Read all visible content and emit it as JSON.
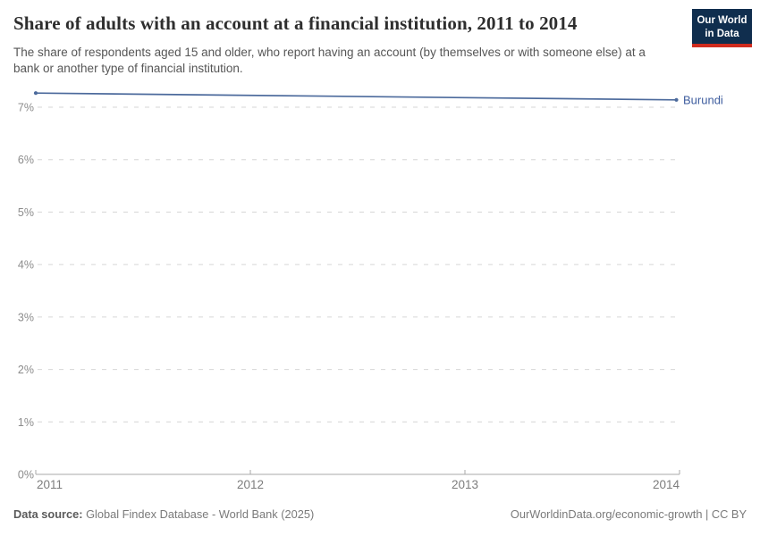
{
  "header": {
    "title": "Share of adults with an account at a financial institution, 2011 to 2014",
    "subtitle": "The share of respondents aged 15 and older, who report having an account (by themselves or with someone else) at a bank or another type of financial institution.",
    "logo_line1": "Our World",
    "logo_line2": "in Data"
  },
  "chart_data": {
    "type": "line",
    "title": "Share of adults with an account at a financial institution, 2011 to 2014",
    "xlabel": "",
    "ylabel": "",
    "x_range": [
      2011,
      2014
    ],
    "y_range": [
      0,
      7.4
    ],
    "x_ticks": [
      2011,
      2012,
      2013,
      2014
    ],
    "y_ticks": [
      0,
      1,
      2,
      3,
      4,
      5,
      6,
      7
    ],
    "y_tick_format": "percent",
    "grid": "horizontal-dashed",
    "legend_position": "end-of-line-label",
    "series": [
      {
        "name": "Burundi",
        "color": "#4C6A9C",
        "points": [
          {
            "x": 2011,
            "y": 7.27
          },
          {
            "x": 2014,
            "y": 7.14
          }
        ]
      }
    ]
  },
  "axes": {
    "y_labels": [
      "0%",
      "1%",
      "2%",
      "3%",
      "4%",
      "5%",
      "6%",
      "7%"
    ],
    "x_labels": [
      "2011",
      "2012",
      "2013",
      "2014"
    ]
  },
  "footer": {
    "source_label": "Data source:",
    "source_text": "Global Findex Database - World Bank (2025)",
    "right_text": "OurWorldinData.org/economic-growth | CC BY"
  },
  "colors": {
    "line": "#4C6A9C",
    "entity_label": "#3D5C9E",
    "logo_bg": "#102E4E",
    "logo_stripe": "#D02B1E",
    "title_text": "#2e2e2e",
    "subtitle_text": "#565656"
  }
}
